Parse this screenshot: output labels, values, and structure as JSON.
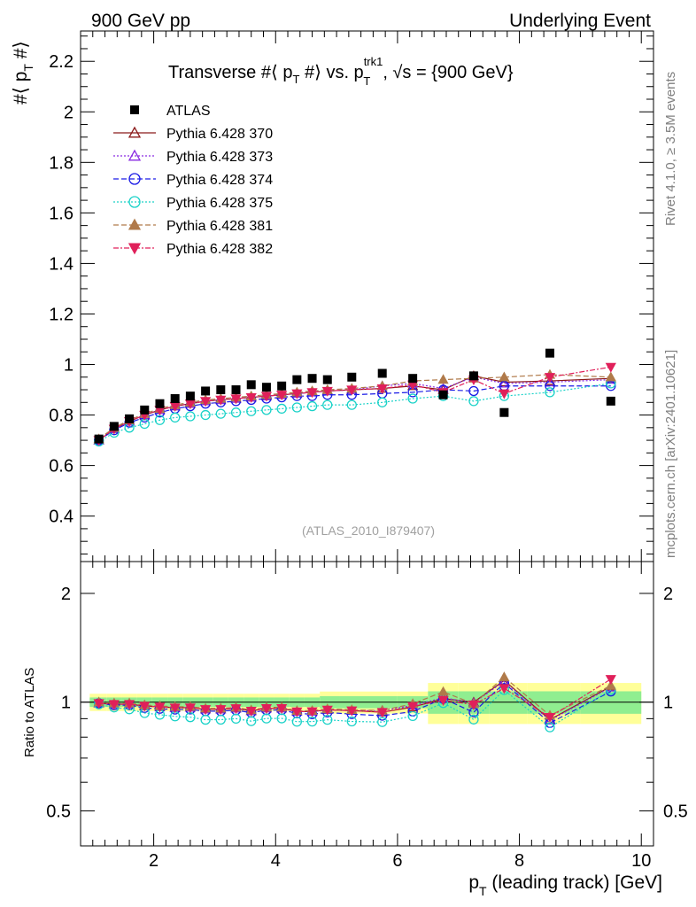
{
  "header": {
    "left": "900 GeV pp",
    "right": "Underlying Event"
  },
  "side_labels": {
    "rivet": "Rivet 4.1.0, ≥ 3.5M events",
    "mcplots": "mcplots.cern.ch [arXiv:2401.10621]"
  },
  "chart_data": {
    "type": "scatter",
    "title_main": "Transverse #⟨ p",
    "title_sub_t1": "T",
    "title_mid": " #⟩ vs. p",
    "title_sup": "trk1",
    "title_sub_t2": "T",
    "title_end": ", √s = {900 GeV}",
    "ylabel_main": "#⟨ p",
    "ylabel_sub": "T",
    "ylabel_end": " #⟩",
    "ratio_ylabel": "Ratio to ATLAS",
    "xlabel_main": "p",
    "xlabel_sub": "T",
    "xlabel_end": " (leading track) [GeV]",
    "watermark": "(ATLAS_2010_I879407)",
    "xlim": [
      0.8,
      10.2
    ],
    "ylim": [
      0.22,
      2.32
    ],
    "ratio_ylim": [
      0.4,
      2.45
    ],
    "x_ticks": [
      "2",
      "4",
      "6",
      "8",
      "10"
    ],
    "y_ticks": [
      "0.4",
      "0.6",
      "0.8",
      "1",
      "1.2",
      "1.4",
      "1.6",
      "1.8",
      "2",
      "2.2"
    ],
    "ratio_ticks": [
      "0.5",
      "1",
      "2"
    ],
    "x": [
      1.1,
      1.35,
      1.6,
      1.85,
      2.1,
      2.35,
      2.6,
      2.85,
      3.1,
      3.35,
      3.6,
      3.85,
      4.1,
      4.35,
      4.6,
      4.85,
      5.25,
      5.75,
      6.25,
      6.75,
      7.25,
      7.75,
      8.5,
      9.5
    ],
    "atlas": [
      0.705,
      0.755,
      0.785,
      0.82,
      0.845,
      0.865,
      0.875,
      0.895,
      0.9,
      0.9,
      0.92,
      0.91,
      0.915,
      0.94,
      0.945,
      0.94,
      0.95,
      0.965,
      0.945,
      0.88,
      0.955,
      0.81,
      1.045,
      0.855
    ],
    "series": [
      {
        "name": "Pythia 6.428 370",
        "color": "#8b1a1a",
        "marker": "triangle-open",
        "dash": "",
        "values": [
          0.7,
          0.745,
          0.775,
          0.8,
          0.82,
          0.835,
          0.845,
          0.855,
          0.86,
          0.865,
          0.87,
          0.875,
          0.88,
          0.885,
          0.89,
          0.895,
          0.9,
          0.905,
          0.915,
          0.9,
          0.955,
          0.93,
          0.935,
          0.945
        ]
      },
      {
        "name": "Pythia 6.428 373",
        "color": "#8a2be2",
        "marker": "triangle-open",
        "dash": "2,2",
        "values": [
          0.7,
          0.745,
          0.775,
          0.8,
          0.82,
          0.835,
          0.845,
          0.855,
          0.86,
          0.865,
          0.87,
          0.875,
          0.88,
          0.885,
          0.89,
          0.895,
          0.9,
          0.915,
          0.925,
          0.905,
          0.95,
          0.925,
          0.93,
          0.94
        ]
      },
      {
        "name": "Pythia 6.428 374",
        "color": "#1a1ae6",
        "marker": "circle-open",
        "dash": "6,3",
        "values": [
          0.7,
          0.74,
          0.77,
          0.79,
          0.81,
          0.825,
          0.835,
          0.845,
          0.85,
          0.855,
          0.86,
          0.865,
          0.87,
          0.875,
          0.875,
          0.88,
          0.88,
          0.885,
          0.89,
          0.9,
          0.895,
          0.915,
          0.915,
          0.915
        ]
      },
      {
        "name": "Pythia 6.428 375",
        "color": "#1ad2c8",
        "marker": "circle-open",
        "dash": "2,2",
        "values": [
          0.695,
          0.73,
          0.75,
          0.765,
          0.78,
          0.79,
          0.795,
          0.8,
          0.805,
          0.81,
          0.815,
          0.82,
          0.825,
          0.83,
          0.835,
          0.84,
          0.84,
          0.85,
          0.865,
          0.875,
          0.855,
          0.875,
          0.89,
          0.925
        ]
      },
      {
        "name": "Pythia 6.428 381",
        "color": "#b07a4a",
        "marker": "triangle",
        "dash": "6,3",
        "values": [
          0.705,
          0.75,
          0.78,
          0.805,
          0.825,
          0.84,
          0.85,
          0.86,
          0.865,
          0.87,
          0.875,
          0.88,
          0.885,
          0.89,
          0.895,
          0.9,
          0.905,
          0.915,
          0.935,
          0.94,
          0.945,
          0.95,
          0.96,
          0.95
        ]
      },
      {
        "name": "Pythia 6.428 382",
        "color": "#e0205a",
        "marker": "triangle-down",
        "dash": "6,2,2,2",
        "values": [
          0.7,
          0.745,
          0.775,
          0.8,
          0.82,
          0.835,
          0.845,
          0.855,
          0.86,
          0.865,
          0.87,
          0.875,
          0.88,
          0.885,
          0.89,
          0.895,
          0.9,
          0.905,
          0.92,
          0.89,
          0.94,
          0.885,
          0.95,
          0.99
        ]
      }
    ]
  }
}
